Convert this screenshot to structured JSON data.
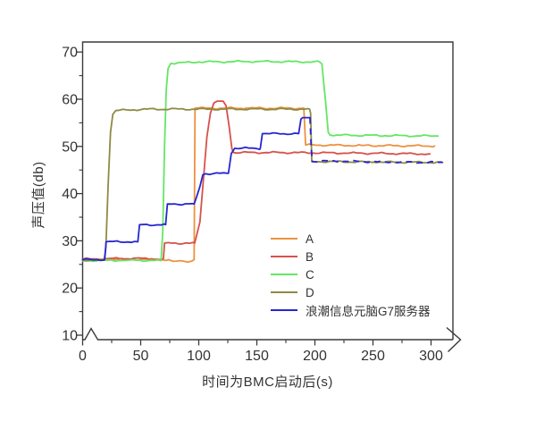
{
  "figure": {
    "background": "#ffffff",
    "axis_color": "#3a3a3a",
    "text_color": "#333333"
  },
  "chart_data": {
    "type": "line",
    "title": "",
    "xlabel": "时间为BMC启动后(s)",
    "ylabel": "声压值(db)",
    "xlim": [
      0,
      318
    ],
    "ylim": [
      10,
      72
    ],
    "x_ticks": [
      0,
      50,
      100,
      150,
      200,
      250,
      300
    ],
    "y_ticks": [
      10,
      20,
      30,
      40,
      50,
      60,
      70
    ],
    "x_minor_ticks": [
      25,
      75,
      125,
      175,
      225,
      275
    ],
    "y_minor_ticks": [
      15,
      25,
      35,
      45,
      55,
      65
    ],
    "grid": false,
    "legend_position": "inside-lower-right",
    "x_axis_arrow": true,
    "x_axis_break_near_origin": true,
    "series": [
      {
        "name": "A",
        "color": "#ED9140",
        "points": [
          [
            0,
            26
          ],
          [
            35,
            26.1
          ],
          [
            74,
            26
          ],
          [
            78,
            25.65
          ],
          [
            94,
            25.7
          ],
          [
            96,
            26
          ],
          [
            96.8,
            58.1
          ],
          [
            140,
            58.1
          ],
          [
            190.5,
            58.1
          ],
          [
            192,
            50.3
          ],
          [
            240,
            50.2
          ],
          [
            303,
            50.1
          ]
        ]
      },
      {
        "name": "B",
        "color": "#D6524B",
        "points": [
          [
            0,
            26.1
          ],
          [
            20,
            26.2
          ],
          [
            45,
            26.3
          ],
          [
            68,
            26.1
          ],
          [
            69.5,
            26.2
          ],
          [
            70.5,
            29.5
          ],
          [
            96.5,
            29.5
          ],
          [
            98,
            31
          ],
          [
            101,
            34
          ],
          [
            104,
            43
          ],
          [
            107,
            52
          ],
          [
            110,
            57
          ],
          [
            113,
            59.2
          ],
          [
            116,
            59.6
          ],
          [
            121,
            59.6
          ],
          [
            123.5,
            58.6
          ],
          [
            126,
            54.5
          ],
          [
            128.5,
            49.5
          ],
          [
            130,
            48.7
          ],
          [
            170,
            48.7
          ],
          [
            230,
            48.6
          ],
          [
            299,
            48.4
          ]
        ]
      },
      {
        "name": "C",
        "color": "#63E763",
        "points": [
          [
            0,
            25.8
          ],
          [
            40,
            25.9
          ],
          [
            67.5,
            25.8
          ],
          [
            69,
            32
          ],
          [
            70.5,
            50
          ],
          [
            72,
            62
          ],
          [
            73.5,
            66.5
          ],
          [
            76,
            67.6
          ],
          [
            100,
            67.9
          ],
          [
            150,
            68
          ],
          [
            204,
            67.9
          ],
          [
            206,
            67.5
          ],
          [
            209,
            60
          ],
          [
            211.5,
            53
          ],
          [
            213,
            52.4
          ],
          [
            260,
            52.3
          ],
          [
            306,
            52.2
          ]
        ]
      },
      {
        "name": "D",
        "color": "#8F8A42",
        "points": [
          [
            0,
            25.9
          ],
          [
            18.5,
            25.9
          ],
          [
            20,
            28.5
          ],
          [
            22,
            42
          ],
          [
            24,
            53
          ],
          [
            26,
            56.8
          ],
          [
            28.5,
            57.6
          ],
          [
            55,
            57.9
          ],
          [
            120,
            57.9
          ],
          [
            195.5,
            57.9
          ],
          [
            196.3,
            57
          ],
          [
            197.3,
            46.8
          ],
          [
            250,
            46.7
          ],
          [
            310,
            46.6
          ]
        ]
      },
      {
        "name": "浪潮信息元脑G7服务器",
        "color": "#2726CF",
        "dash_from": 196.5,
        "points": [
          [
            0,
            26
          ],
          [
            19,
            26
          ],
          [
            20.2,
            29.8
          ],
          [
            47.5,
            29.8
          ],
          [
            49,
            33.4
          ],
          [
            71.5,
            33.4
          ],
          [
            73,
            37.8
          ],
          [
            96,
            37.8
          ],
          [
            98,
            39.2
          ],
          [
            101,
            41.5
          ],
          [
            103.5,
            44
          ],
          [
            106,
            44.2
          ],
          [
            125.5,
            44.3
          ],
          [
            128,
            48.5
          ],
          [
            131,
            49.6
          ],
          [
            153,
            49.6
          ],
          [
            154.8,
            52.7
          ],
          [
            186,
            52.7
          ],
          [
            188,
            55.8
          ],
          [
            189.5,
            56.1
          ],
          [
            195.8,
            56.1
          ],
          [
            196.8,
            50
          ],
          [
            197.8,
            46.8
          ],
          [
            220,
            46.9
          ],
          [
            260,
            46.7
          ],
          [
            310,
            46.6
          ]
        ]
      }
    ]
  },
  "legend": {
    "items": [
      "A",
      "B",
      "C",
      "D",
      "浪潮信息元脑G7服务器"
    ]
  }
}
